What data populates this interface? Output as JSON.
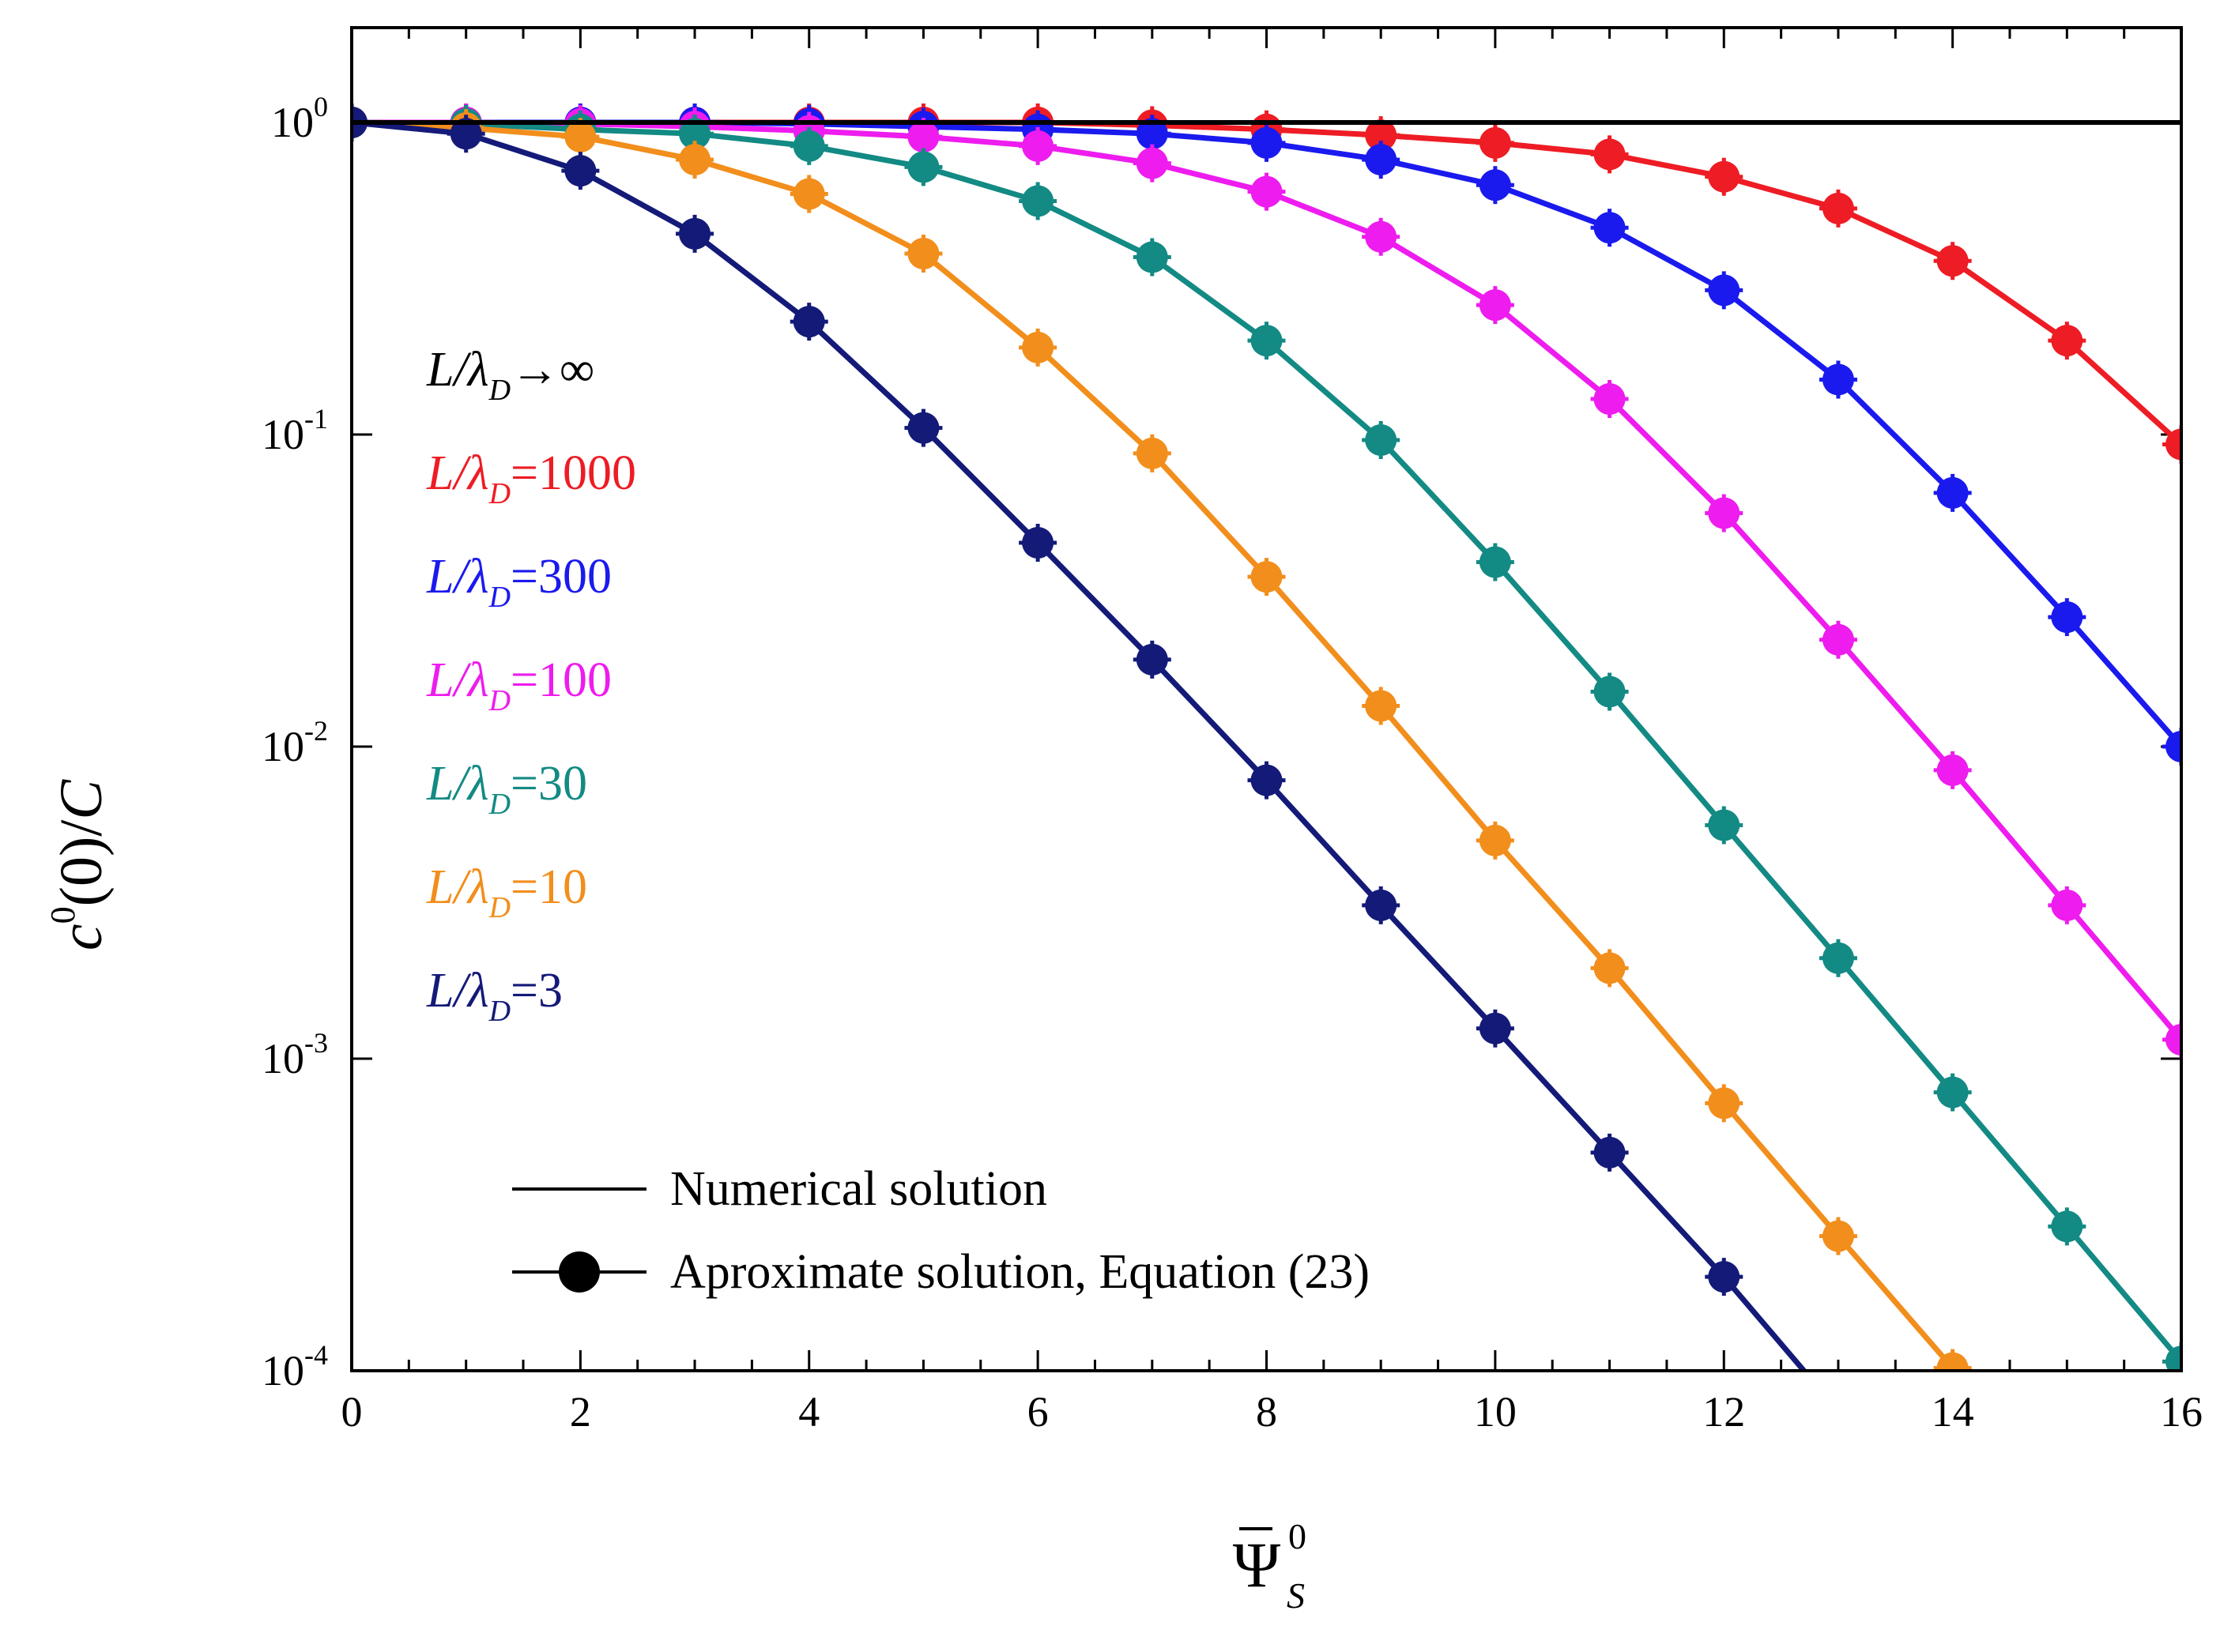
{
  "chart_data": {
    "type": "line",
    "title": "",
    "xlabel": "Ψ̄_S^0",
    "ylabel": "c^0(0)/C",
    "xlim": [
      0,
      16
    ],
    "ylim": [
      0.0001,
      2
    ],
    "yscale": "log",
    "x_ticks": [
      "0",
      "2",
      "4",
      "6",
      "8",
      "10",
      "12",
      "14",
      "16"
    ],
    "y_ticks": [
      {
        "value": 1,
        "base": "10",
        "exp": "0"
      },
      {
        "value": 0.1,
        "base": "10",
        "exp": "-1"
      },
      {
        "value": 0.01,
        "base": "10",
        "exp": "-2"
      },
      {
        "value": 0.001,
        "base": "10",
        "exp": "-3"
      },
      {
        "value": 0.0001,
        "base": "10",
        "exp": "-4"
      }
    ],
    "legend": {
      "numerical": "Numerical solution",
      "approximate": "Aproximate solution, Equation (23)"
    },
    "series": [
      {
        "name": "L/λD→∞",
        "label_main": "L/λ",
        "label_sub": "D",
        "label_rest": "→∞",
        "color": "#000000",
        "markers": false,
        "x": [
          0,
          16
        ],
        "values": [
          1,
          1
        ]
      },
      {
        "name": "L/λD=1000",
        "label_main": "L/λ",
        "label_sub": "D",
        "label_rest": "=1000",
        "color": "#ee1c24",
        "markers": true,
        "x": [
          0,
          1,
          2,
          3,
          4,
          5,
          6,
          7,
          8,
          9,
          10,
          11,
          12,
          13,
          14,
          15,
          16
        ],
        "values": [
          1,
          1,
          1,
          1,
          1,
          1,
          1,
          0.98,
          0.95,
          0.91,
          0.86,
          0.79,
          0.67,
          0.53,
          0.36,
          0.2,
          0.093
        ]
      },
      {
        "name": "L/λD=300",
        "label_main": "L/λ",
        "label_sub": "D",
        "label_rest": "=300",
        "color": "#1a1aee",
        "markers": true,
        "x": [
          0,
          1,
          2,
          3,
          4,
          5,
          6,
          7,
          8,
          9,
          10,
          11,
          12,
          13,
          14,
          15,
          16
        ],
        "values": [
          1,
          1,
          1,
          1,
          0.99,
          0.97,
          0.95,
          0.92,
          0.86,
          0.76,
          0.63,
          0.46,
          0.29,
          0.15,
          0.065,
          0.026,
          0.01
        ]
      },
      {
        "name": "L/λD=100",
        "label_main": "L/λ",
        "label_sub": "D",
        "label_rest": "=100",
        "color": "#ee1cee",
        "markers": true,
        "x": [
          0,
          1,
          2,
          3,
          4,
          5,
          6,
          7,
          8,
          9,
          10,
          11,
          12,
          13,
          14,
          15,
          16
        ],
        "values": [
          1,
          1,
          0.99,
          0.97,
          0.94,
          0.9,
          0.84,
          0.74,
          0.6,
          0.43,
          0.26,
          0.13,
          0.056,
          0.022,
          0.0084,
          0.0031,
          0.00115
        ]
      },
      {
        "name": "L/λD=30",
        "label_main": "L/λ",
        "label_sub": "D",
        "label_rest": "=30",
        "color": "#138a84",
        "markers": true,
        "x": [
          0,
          1,
          2,
          3,
          4,
          5,
          6,
          7,
          8,
          9,
          10,
          11,
          12,
          13,
          14,
          15,
          16
        ],
        "values": [
          1,
          0.99,
          0.95,
          0.92,
          0.84,
          0.72,
          0.56,
          0.37,
          0.2,
          0.096,
          0.039,
          0.015,
          0.0056,
          0.0021,
          0.00078,
          0.00029,
          0.000107
        ]
      },
      {
        "name": "L/λD=10",
        "label_main": "L/λ",
        "label_sub": "D",
        "label_rest": "=10",
        "color": "#f28e1c",
        "markers": true,
        "x": [
          0,
          1,
          2,
          3,
          4,
          5,
          6,
          7,
          8,
          9,
          10,
          11,
          12,
          13,
          14
        ],
        "values": [
          1,
          0.96,
          0.9,
          0.76,
          0.59,
          0.38,
          0.19,
          0.087,
          0.035,
          0.0135,
          0.005,
          0.00195,
          0.00072,
          0.00027,
          0.000102
        ]
      },
      {
        "name": "L/λD=3",
        "label_main": "L/λ",
        "label_sub": "D",
        "label_rest": "=3",
        "color": "#141a78",
        "markers": true,
        "x": [
          0,
          1,
          2,
          3,
          4,
          5,
          6,
          7,
          8,
          9,
          10,
          11,
          12,
          12.7
        ],
        "values": [
          1,
          0.92,
          0.7,
          0.44,
          0.23,
          0.105,
          0.045,
          0.019,
          0.0078,
          0.0031,
          0.00125,
          0.0005,
          0.0002,
          0.0001
        ]
      }
    ]
  }
}
